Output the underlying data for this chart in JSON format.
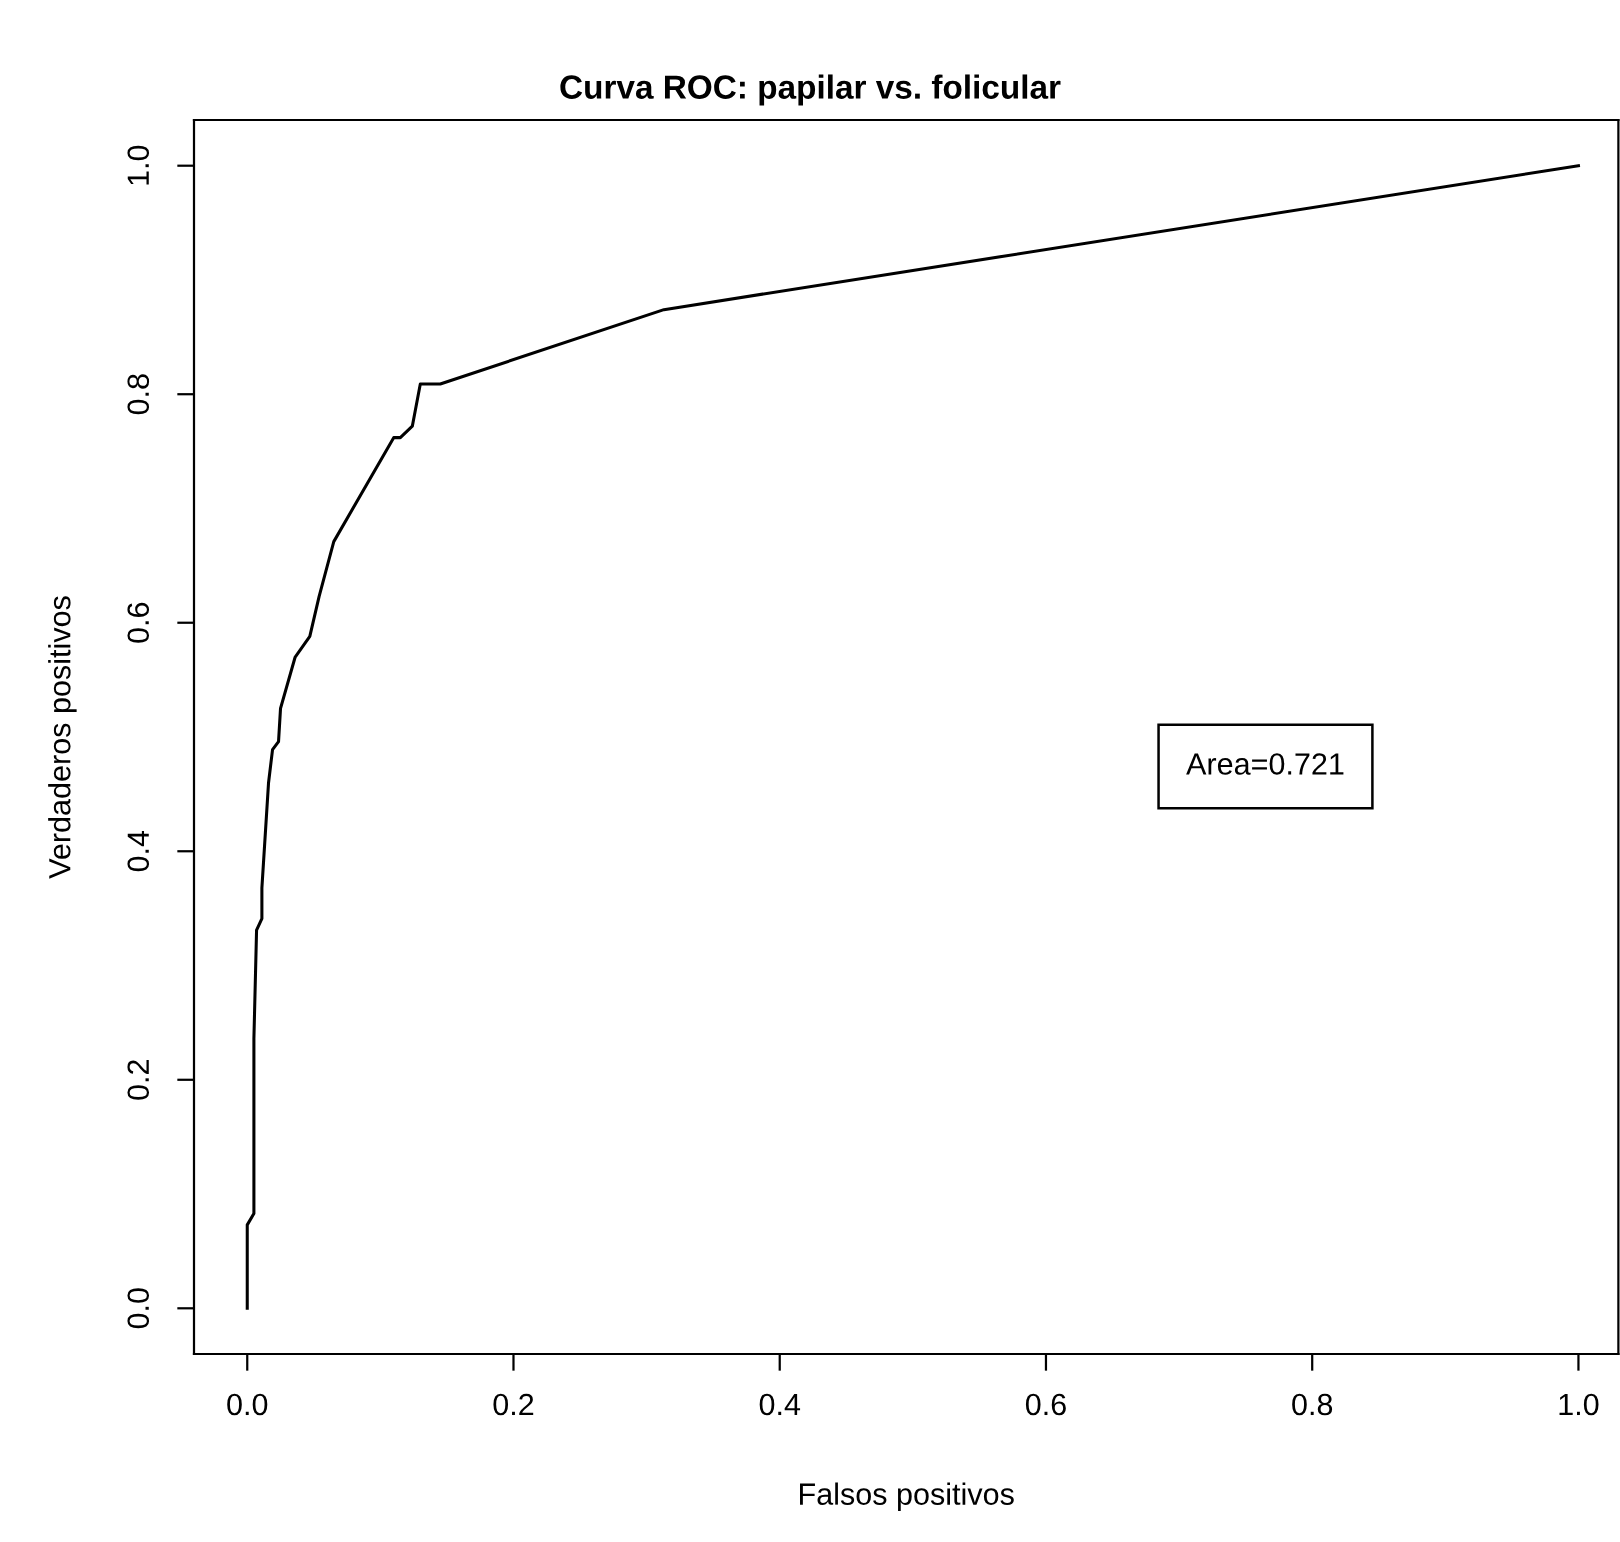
{
  "chart_data": {
    "type": "line",
    "title": "Curva ROC: papilar vs. folicular",
    "xlabel": "Falsos positivos",
    "ylabel": "Verdaderos positivos",
    "x": [
      0,
      0,
      0.005,
      0.005,
      0.007,
      0.011,
      0.011,
      0.016,
      0.019,
      0.0235,
      0.025,
      0.036,
      0.047,
      0.054,
      0.065,
      0.11,
      0.115,
      0.124,
      0.13,
      0.145,
      0.313,
      1
    ],
    "series": [
      {
        "color": "#000000",
        "values": [
          0,
          0.073,
          0.083,
          0.236,
          0.331,
          0.341,
          0.368,
          0.46,
          0.489,
          0.496,
          0.525,
          0.57,
          0.588,
          0.623,
          0.671,
          0.762,
          0.762,
          0.772,
          0.809,
          0.809,
          0.874,
          1
        ]
      }
    ],
    "xlim": [
      -0.04,
      1.03
    ],
    "ylim": [
      -0.04,
      1.04
    ],
    "xticks": [
      {
        "value": 0,
        "label": "0.0"
      },
      0.2,
      0.4,
      0.6,
      0.8,
      {
        "value": 1,
        "label": "1.0"
      }
    ],
    "yticks": [
      {
        "value": 0,
        "label": "0.0"
      },
      0.2,
      0.4,
      0.6,
      0.8,
      {
        "value": 1,
        "label": "1.0"
      }
    ],
    "annotations": [
      "Area=0.721"
    ],
    "grid": false,
    "line_style": "solid",
    "marker": "none"
  }
}
